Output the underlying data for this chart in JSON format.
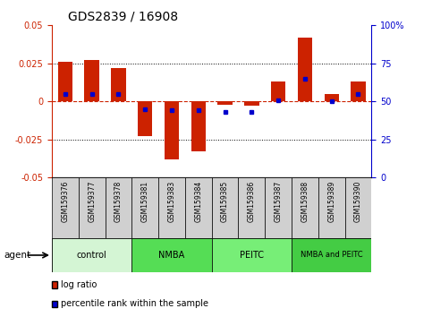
{
  "title": "GDS2839 / 16908",
  "samples": [
    "GSM159376",
    "GSM159377",
    "GSM159378",
    "GSM159381",
    "GSM159383",
    "GSM159384",
    "GSM159385",
    "GSM159386",
    "GSM159387",
    "GSM159388",
    "GSM159389",
    "GSM159390"
  ],
  "log_ratio": [
    0.026,
    0.027,
    0.022,
    -0.023,
    -0.038,
    -0.033,
    -0.002,
    -0.003,
    0.013,
    0.042,
    0.005,
    0.013
  ],
  "percentile_rank": [
    55,
    55,
    55,
    45,
    44,
    44,
    43,
    43,
    51,
    65,
    50,
    55
  ],
  "groups": [
    {
      "label": "control",
      "start": 0,
      "end": 3,
      "color": "#d4f5d4"
    },
    {
      "label": "NMBA",
      "start": 3,
      "end": 6,
      "color": "#55dd55"
    },
    {
      "label": "PEITC",
      "start": 6,
      "end": 9,
      "color": "#77ee77"
    },
    {
      "label": "NMBA and PEITC",
      "start": 9,
      "end": 12,
      "color": "#44cc44"
    }
  ],
  "ylim": [
    -0.05,
    0.05
  ],
  "yticks_left": [
    -0.05,
    -0.025,
    0,
    0.025,
    0.05
  ],
  "yticks_right": [
    0,
    25,
    50,
    75,
    100
  ],
  "bar_color": "#cc2200",
  "dot_color": "#0000cc",
  "left_axis_color": "#cc2200",
  "right_axis_color": "#0000cc",
  "zero_line_color": "#cc2200",
  "bar_width": 0.55
}
